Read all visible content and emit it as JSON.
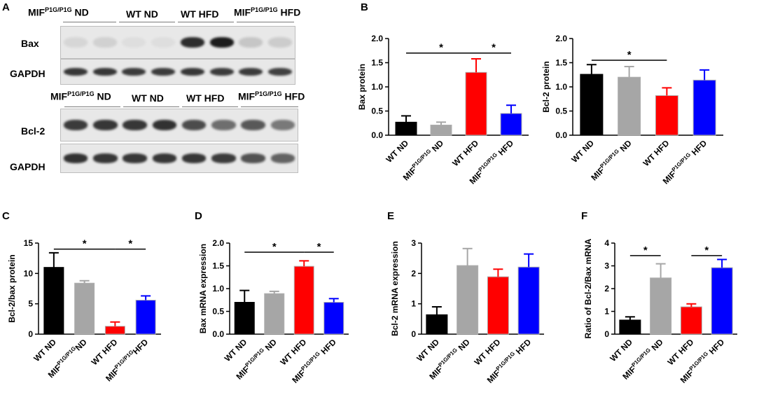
{
  "panel_letters": [
    "A",
    "B",
    "C",
    "D",
    "E",
    "F"
  ],
  "blots": {
    "top_groups": [
      "MIF",
      "P1G/P1G",
      " ND",
      "WT ND",
      "WT HFD",
      "MIF",
      "P1G/P1G",
      " HFD"
    ],
    "bottom_groups": [
      "MIF",
      "P1G/P1G",
      " ND",
      "WT ND",
      "WT HFD",
      "MIF",
      "P1G/P1G",
      " HFD"
    ],
    "row_labels": [
      "Bax",
      "GAPDH",
      "Bcl-2",
      "GAPDH"
    ],
    "band_intensity": {
      "bax": [
        0.08,
        0.1,
        0.04,
        0.04,
        0.85,
        0.92,
        0.15,
        0.12
      ],
      "gapdh_top": [
        0.8,
        0.8,
        0.78,
        0.78,
        0.8,
        0.78,
        0.78,
        0.76
      ],
      "bcl2": [
        0.78,
        0.8,
        0.8,
        0.82,
        0.7,
        0.55,
        0.65,
        0.5
      ],
      "gapdh_bottom": [
        0.82,
        0.8,
        0.8,
        0.8,
        0.8,
        0.78,
        0.68,
        0.6
      ]
    }
  },
  "colors": {
    "black": "#000000",
    "gray": "#a6a6a6",
    "red": "#ff0000",
    "blue": "#0000ff"
  },
  "chart_data": [
    {
      "panel": "B",
      "type": "bar",
      "ylabel": "Bax protein",
      "ylim": [
        0,
        2.0
      ],
      "yticks": [
        "0.0",
        "0.5",
        "1.0",
        "1.5",
        "2.0"
      ],
      "categories": [
        {
          "base": "WT ND",
          "sup": "",
          "tail": ""
        },
        {
          "base": "MIF",
          "sup": "P1G/P1G",
          "tail": " ND"
        },
        {
          "base": "WT HFD",
          "sup": "",
          "tail": ""
        },
        {
          "base": "MIF",
          "sup": "P1G/P1G",
          "tail": " HFD"
        }
      ],
      "values": [
        0.27,
        0.21,
        1.3,
        0.45
      ],
      "errors": [
        0.13,
        0.06,
        0.28,
        0.17
      ],
      "bar_colors": [
        "#000000",
        "#a6a6a6",
        "#ff0000",
        "#0000ff"
      ],
      "significance": [
        {
          "from": 0,
          "to": 2,
          "level": 1.7,
          "label": "*"
        },
        {
          "from": 2,
          "to": 3,
          "level": 1.7,
          "label": "*"
        }
      ]
    },
    {
      "panel": "B",
      "type": "bar",
      "ylabel": "Bcl-2 protein",
      "ylim": [
        0,
        2.0
      ],
      "yticks": [
        "0.0",
        "0.5",
        "1.0",
        "1.5",
        "2.0"
      ],
      "categories": [
        {
          "base": "WT ND",
          "sup": "",
          "tail": ""
        },
        {
          "base": "MIF",
          "sup": "P1G/P1G",
          "tail": " ND"
        },
        {
          "base": "WT HFD",
          "sup": "",
          "tail": ""
        },
        {
          "base": "MIF",
          "sup": "P1G/P1G",
          "tail": " HFD"
        }
      ],
      "values": [
        1.26,
        1.2,
        0.82,
        1.14
      ],
      "errors": [
        0.2,
        0.22,
        0.16,
        0.21
      ],
      "bar_colors": [
        "#000000",
        "#a6a6a6",
        "#ff0000",
        "#0000ff"
      ],
      "significance": [
        {
          "from": 0,
          "to": 2,
          "level": 1.55,
          "label": "*"
        }
      ]
    },
    {
      "panel": "C",
      "type": "bar",
      "ylabel": "Bcl-2/bax protein",
      "ylim": [
        0,
        15
      ],
      "yticks": [
        "0",
        "5",
        "10",
        "15"
      ],
      "categories": [
        {
          "base": "WT ND",
          "sup": "",
          "tail": ""
        },
        {
          "base": "MIF",
          "sup": "P1G/P1G",
          "tail": "ND"
        },
        {
          "base": "WT HFD",
          "sup": "",
          "tail": ""
        },
        {
          "base": "MIF",
          "sup": "P1G/P1G",
          "tail": "HFD"
        }
      ],
      "values": [
        11.0,
        8.4,
        1.3,
        5.6
      ],
      "errors": [
        2.4,
        0.4,
        0.7,
        0.7
      ],
      "bar_colors": [
        "#000000",
        "#a6a6a6",
        "#ff0000",
        "#0000ff"
      ],
      "significance": [
        {
          "from": 0,
          "to": 2,
          "level": 14.0,
          "label": "*"
        },
        {
          "from": 2,
          "to": 3,
          "level": 14.0,
          "label": "*"
        }
      ]
    },
    {
      "panel": "D",
      "type": "bar",
      "ylabel": "Bax mRNA expression",
      "ylim": [
        0,
        2.0
      ],
      "yticks": [
        "0.0",
        "0.5",
        "1.0",
        "1.5",
        "2.0"
      ],
      "categories": [
        {
          "base": "WT ND",
          "sup": "",
          "tail": ""
        },
        {
          "base": "MIF",
          "sup": "P1G/P1G",
          "tail": " ND"
        },
        {
          "base": "WT HFD",
          "sup": "",
          "tail": ""
        },
        {
          "base": "MIF",
          "sup": "P1G/P1G",
          "tail": " HFD"
        }
      ],
      "values": [
        0.7,
        0.89,
        1.49,
        0.7
      ],
      "errors": [
        0.26,
        0.05,
        0.12,
        0.08
      ],
      "bar_colors": [
        "#000000",
        "#a6a6a6",
        "#ff0000",
        "#0000ff"
      ],
      "significance": [
        {
          "from": 0,
          "to": 2,
          "level": 1.8,
          "label": "*"
        },
        {
          "from": 2,
          "to": 3,
          "level": 1.8,
          "label": "*"
        }
      ]
    },
    {
      "panel": "E",
      "type": "bar",
      "ylabel": "Bcl-2 mRNA expression",
      "ylim": [
        0,
        3
      ],
      "yticks": [
        "0",
        "1",
        "2",
        "3"
      ],
      "categories": [
        {
          "base": "WT ND",
          "sup": "",
          "tail": ""
        },
        {
          "base": "MIF",
          "sup": "P1G/P1G",
          "tail": " ND"
        },
        {
          "base": "WT HFD",
          "sup": "",
          "tail": ""
        },
        {
          "base": "MIF",
          "sup": "P1G/P1G",
          "tail": " HFD"
        }
      ],
      "values": [
        0.64,
        2.26,
        1.89,
        2.21
      ],
      "errors": [
        0.26,
        0.56,
        0.25,
        0.43
      ],
      "bar_colors": [
        "#000000",
        "#a6a6a6",
        "#ff0000",
        "#0000ff"
      ],
      "significance": []
    },
    {
      "panel": "F",
      "type": "bar",
      "ylabel": "Ratio of Bcl-2/Bax mRNA",
      "ylim": [
        0,
        4
      ],
      "yticks": [
        "0",
        "1",
        "2",
        "3",
        "4"
      ],
      "categories": [
        {
          "base": "WT ND",
          "sup": "",
          "tail": ""
        },
        {
          "base": "MIF",
          "sup": "P1G/P1G",
          "tail": " ND"
        },
        {
          "base": "WT HFD",
          "sup": "",
          "tail": ""
        },
        {
          "base": "MIF",
          "sup": "P1G/P1G",
          "tail": " HFD"
        }
      ],
      "values": [
        0.62,
        2.47,
        1.2,
        2.92
      ],
      "errors": [
        0.14,
        0.62,
        0.13,
        0.36
      ],
      "bar_colors": [
        "#000000",
        "#a6a6a6",
        "#ff0000",
        "#0000ff"
      ],
      "significance": [
        {
          "from": 0,
          "to": 1,
          "level": 3.45,
          "label": "*"
        },
        {
          "from": 2,
          "to": 3,
          "level": 3.45,
          "label": "*"
        }
      ]
    }
  ]
}
